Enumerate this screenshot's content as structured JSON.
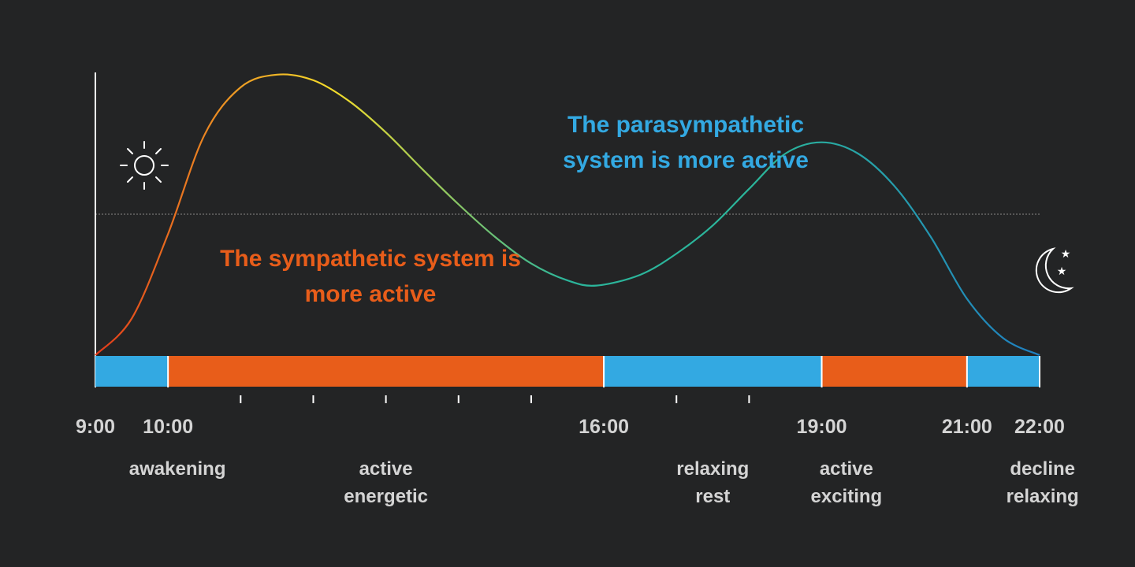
{
  "colors": {
    "background": "#232425",
    "sympathetic": "#e85d1a",
    "parasympathetic": "#33a9e2",
    "curve_start": "#e23a1a",
    "curve_peak": "#f5dc2a",
    "curve_mid": "#2bb59b",
    "curve_end": "#1f7fc1",
    "axis": "#ffffff",
    "label": "#d4d4d4"
  },
  "icons": {
    "morning": "sun-icon",
    "night": "moon-stars-icon"
  },
  "annotations": {
    "sympathetic": {
      "line1": "The sympathetic system is",
      "line2": "more active"
    },
    "parasympathetic": {
      "line1": "The parasympathetic",
      "line2": "system is more active"
    }
  },
  "time_labels": [
    {
      "hour": 9,
      "label": "9:00"
    },
    {
      "hour": 10,
      "label": "10:00"
    },
    {
      "hour": 16,
      "label": "16:00"
    },
    {
      "hour": 19,
      "label": "19:00"
    },
    {
      "hour": 21,
      "label": "21:00"
    },
    {
      "hour": 22,
      "label": "22:00"
    }
  ],
  "minor_tick_hours": [
    11,
    12,
    13,
    14,
    15,
    17,
    18
  ],
  "segments": [
    {
      "start": 9,
      "end": 10,
      "system": "parasympathetic"
    },
    {
      "start": 10,
      "end": 16,
      "system": "sympathetic"
    },
    {
      "start": 16,
      "end": 19,
      "system": "parasympathetic"
    },
    {
      "start": 19,
      "end": 21,
      "system": "sympathetic"
    },
    {
      "start": 21,
      "end": 22,
      "system": "parasympathetic"
    }
  ],
  "phases": [
    {
      "hour": 10.13,
      "lines": [
        "awakening"
      ]
    },
    {
      "hour": 13,
      "lines": [
        "active",
        "energetic"
      ]
    },
    {
      "hour": 17.5,
      "lines": [
        "relaxing",
        "rest"
      ]
    },
    {
      "hour": 19.34,
      "lines": [
        "active",
        "exciting"
      ]
    },
    {
      "hour": 22.04,
      "lines": [
        "decline",
        "relaxing"
      ]
    }
  ],
  "activity_curve": {
    "x_range": [
      9,
      22
    ],
    "y_range": [
      0,
      1
    ],
    "threshold": 0.5,
    "points": [
      [
        9.0,
        0.0
      ],
      [
        9.5,
        0.13
      ],
      [
        10.0,
        0.43
      ],
      [
        10.5,
        0.78
      ],
      [
        11.0,
        0.95
      ],
      [
        11.5,
        0.995
      ],
      [
        12.0,
        0.975
      ],
      [
        12.5,
        0.9
      ],
      [
        13.0,
        0.79
      ],
      [
        13.5,
        0.66
      ],
      [
        14.0,
        0.535
      ],
      [
        14.5,
        0.42
      ],
      [
        15.0,
        0.325
      ],
      [
        15.5,
        0.265
      ],
      [
        15.9,
        0.247
      ],
      [
        16.5,
        0.285
      ],
      [
        17.0,
        0.36
      ],
      [
        17.5,
        0.46
      ],
      [
        18.0,
        0.59
      ],
      [
        18.5,
        0.715
      ],
      [
        19.0,
        0.755
      ],
      [
        19.5,
        0.715
      ],
      [
        20.0,
        0.6
      ],
      [
        20.5,
        0.42
      ],
      [
        21.0,
        0.2
      ],
      [
        21.5,
        0.06
      ],
      [
        22.0,
        0.0
      ]
    ]
  }
}
